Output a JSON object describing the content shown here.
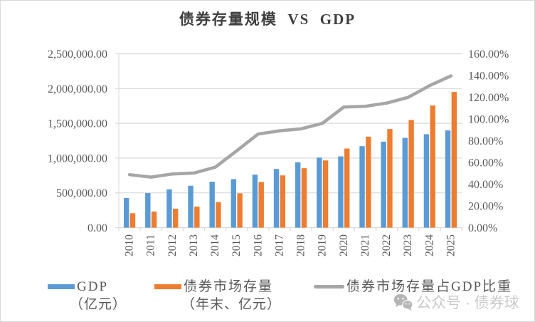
{
  "title": "债券存量规模  VS  GDP",
  "chart_data": {
    "type": "bar",
    "title": "债券存量规模 VS GDP",
    "categories": [
      "2010",
      "2011",
      "2012",
      "2013",
      "2014",
      "2015",
      "2016",
      "2017",
      "2018",
      "2019",
      "2020",
      "2021",
      "2022",
      "2023",
      "2024",
      "2025"
    ],
    "series": [
      {
        "name": "GDP（亿元）",
        "type": "bar",
        "axis": "left",
        "color": "#5B9BD5",
        "values": [
          425000,
          497000,
          551000,
          602000,
          660000,
          697000,
          762000,
          843000,
          940000,
          1007000,
          1024000,
          1171000,
          1236000,
          1291000,
          1343000,
          1398000
        ]
      },
      {
        "name": "债券市场存量（年末、亿元）",
        "type": "bar",
        "axis": "left",
        "color": "#ED7D31",
        "values": [
          207000,
          231000,
          272000,
          302000,
          367000,
          493000,
          656000,
          751000,
          854000,
          966000,
          1137000,
          1308000,
          1417000,
          1548000,
          1756000,
          1951000
        ]
      },
      {
        "name": "债券市场存量占GDP比重",
        "type": "line",
        "axis": "right",
        "color": "#A6A6A6",
        "values": [
          48.7,
          46.5,
          49.4,
          50.2,
          55.6,
          70.7,
          86.1,
          89.1,
          90.9,
          96.0,
          111.0,
          111.7,
          114.6,
          119.9,
          130.7,
          139.6
        ]
      }
    ],
    "left_axis": {
      "min": 0,
      "max": 2500000,
      "step": 500000,
      "ticks": [
        "0.00",
        "500,000.00",
        "1,000,000.00",
        "1,500,000.00",
        "2,000,000.00",
        "2,500,000.00"
      ]
    },
    "right_axis": {
      "min": 0,
      "max": 160,
      "step": 20,
      "ticks": [
        "0.00%",
        "20.00%",
        "40.00%",
        "60.00%",
        "80.00%",
        "100.00%",
        "120.00%",
        "140.00%",
        "160.00%"
      ]
    },
    "grid": true,
    "legend_position": "bottom",
    "gridline_color": "#D9D9D9",
    "tick_label_color": "#595959"
  },
  "legend": {
    "items": [
      {
        "label": "GDP",
        "sublabel": "（亿元）",
        "color": "#5B9BD5",
        "swatch": "bar"
      },
      {
        "label": "债券市场存量",
        "sublabel": "（年末、亿元）",
        "color": "#ED7D31",
        "swatch": "bar"
      },
      {
        "label": "债券市场存量占GDP比重",
        "sublabel": "",
        "color": "#A6A6A6",
        "swatch": "line"
      }
    ]
  },
  "watermark": {
    "icon": "wechat-icon",
    "text": "公众号 · 债券球"
  }
}
